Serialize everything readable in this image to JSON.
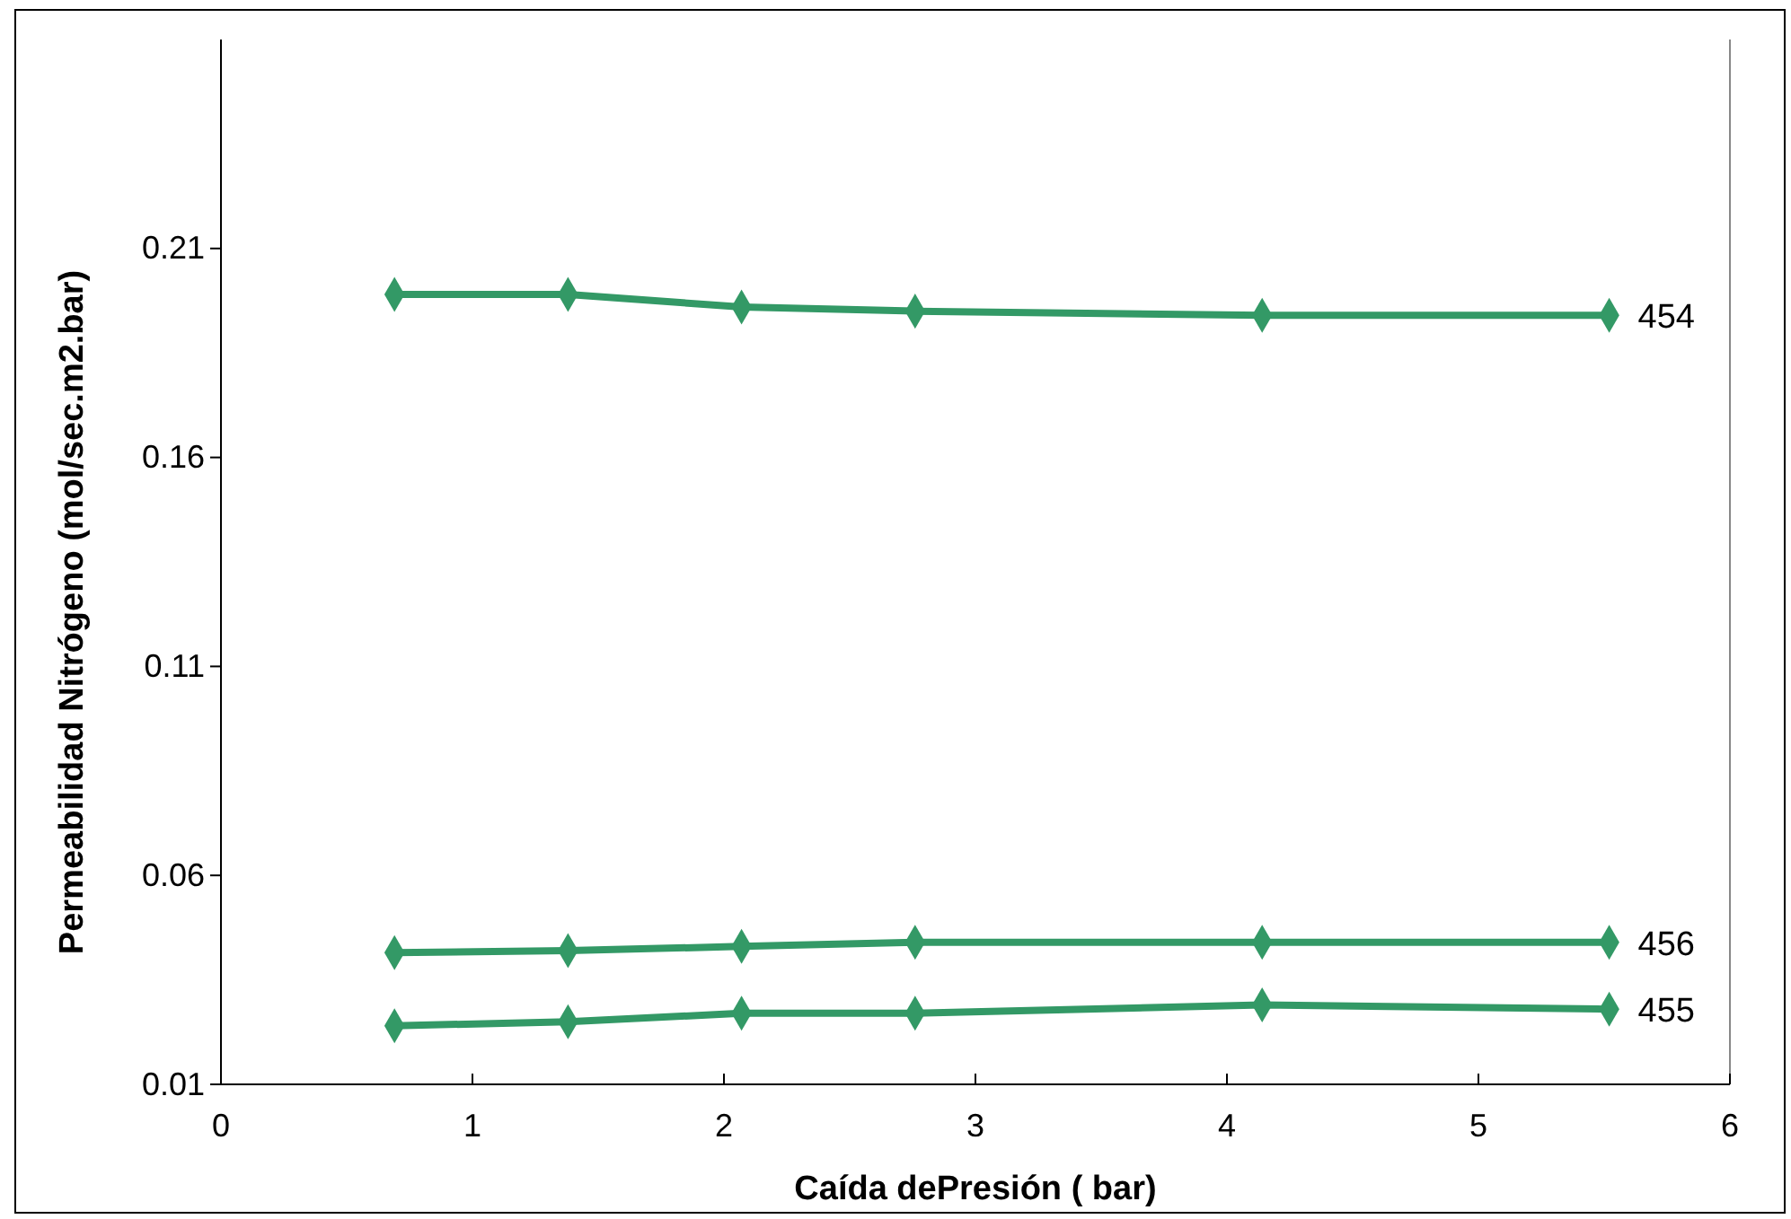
{
  "chart_data": {
    "type": "line",
    "xlabel": "Caída dePresión ( bar)",
    "ylabel": "Permeabilidad Nitrógeno (mol/sec.m2.bar)",
    "x": [
      0.69,
      1.38,
      2.07,
      2.76,
      4.14,
      5.52
    ],
    "series": [
      {
        "name": "454",
        "color": "#339966",
        "values": [
          0.199,
          0.199,
          0.196,
          0.195,
          0.194,
          0.194
        ]
      },
      {
        "name": "456",
        "color": "#339966",
        "values": [
          0.0415,
          0.042,
          0.043,
          0.044,
          0.044,
          0.044
        ]
      },
      {
        "name": "455",
        "color": "#339966",
        "values": [
          0.024,
          0.025,
          0.027,
          0.027,
          0.029,
          0.028
        ]
      }
    ],
    "xlim": [
      0,
      6
    ],
    "xticks": [
      0,
      1,
      2,
      3,
      4,
      5,
      6
    ],
    "ylim": [
      0.01,
      0.26
    ],
    "yticks": [
      0.01,
      0.06,
      0.11,
      0.16,
      0.21
    ],
    "grid": false,
    "legend": false,
    "marker": "diamond",
    "line_style": "solid"
  }
}
